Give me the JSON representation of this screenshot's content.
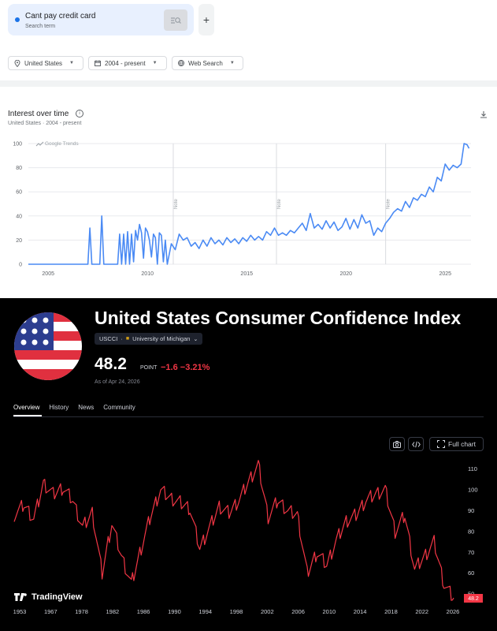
{
  "search": {
    "term": "Cant pay credit card",
    "sublabel": "Search term"
  },
  "filters": [
    {
      "label": "United States",
      "icon": "location-pin-icon"
    },
    {
      "label": "2004 - present",
      "icon": "calendar-icon"
    },
    {
      "label": "Web Search",
      "icon": "globe-icon"
    }
  ],
  "interest": {
    "title": "Interest over time",
    "subtitle": "United States · 2004 - present",
    "watermark": "Google Trends",
    "note_labels": [
      "Note",
      "Note",
      "Note"
    ]
  },
  "trends_chart_data": {
    "type": "line",
    "title": "Interest over time",
    "y_ticks": [
      0,
      20,
      40,
      60,
      80,
      100
    ],
    "x_ticks": [
      2005,
      2010,
      2015,
      2020,
      2025
    ],
    "ylim": [
      0,
      100
    ],
    "xlim": [
      2004,
      2026.3
    ],
    "note_years": [
      2011.3,
      2016.5,
      2022.0
    ],
    "color": "#4a8af4",
    "points": [
      [
        2004,
        0
      ],
      [
        2007,
        0
      ],
      [
        2007.1,
        30
      ],
      [
        2007.2,
        0
      ],
      [
        2007.6,
        0
      ],
      [
        2007.7,
        40
      ],
      [
        2007.8,
        0
      ],
      [
        2008.5,
        0
      ],
      [
        2008.6,
        25
      ],
      [
        2008.7,
        0
      ],
      [
        2008.8,
        25
      ],
      [
        2008.9,
        0
      ],
      [
        2009.0,
        27
      ],
      [
        2009.1,
        0
      ],
      [
        2009.2,
        25
      ],
      [
        2009.3,
        2
      ],
      [
        2009.4,
        28
      ],
      [
        2009.5,
        20
      ],
      [
        2009.6,
        33
      ],
      [
        2009.7,
        26
      ],
      [
        2009.8,
        5
      ],
      [
        2009.9,
        30
      ],
      [
        2010.0,
        27
      ],
      [
        2010.1,
        20
      ],
      [
        2010.2,
        6
      ],
      [
        2010.3,
        25
      ],
      [
        2010.4,
        22
      ],
      [
        2010.5,
        0
      ],
      [
        2010.6,
        26
      ],
      [
        2010.7,
        24
      ],
      [
        2010.8,
        2
      ],
      [
        2010.9,
        20
      ],
      [
        2011.0,
        0
      ],
      [
        2011.2,
        17
      ],
      [
        2011.4,
        12
      ],
      [
        2011.6,
        25
      ],
      [
        2011.8,
        20
      ],
      [
        2012.0,
        22
      ],
      [
        2012.2,
        15
      ],
      [
        2012.4,
        18
      ],
      [
        2012.6,
        13
      ],
      [
        2012.8,
        20
      ],
      [
        2013.0,
        15
      ],
      [
        2013.2,
        22
      ],
      [
        2013.4,
        17
      ],
      [
        2013.6,
        20
      ],
      [
        2013.8,
        16
      ],
      [
        2014.0,
        22
      ],
      [
        2014.2,
        18
      ],
      [
        2014.4,
        21
      ],
      [
        2014.6,
        17
      ],
      [
        2014.8,
        22
      ],
      [
        2015.0,
        19
      ],
      [
        2015.2,
        24
      ],
      [
        2015.4,
        20
      ],
      [
        2015.6,
        23
      ],
      [
        2015.8,
        20
      ],
      [
        2016.0,
        27
      ],
      [
        2016.2,
        24
      ],
      [
        2016.4,
        30
      ],
      [
        2016.6,
        24
      ],
      [
        2016.8,
        26
      ],
      [
        2017.0,
        24
      ],
      [
        2017.2,
        28
      ],
      [
        2017.4,
        26
      ],
      [
        2017.6,
        30
      ],
      [
        2017.8,
        34
      ],
      [
        2018.0,
        28
      ],
      [
        2018.2,
        42
      ],
      [
        2018.4,
        30
      ],
      [
        2018.6,
        33
      ],
      [
        2018.8,
        29
      ],
      [
        2019.0,
        36
      ],
      [
        2019.2,
        30
      ],
      [
        2019.4,
        35
      ],
      [
        2019.6,
        28
      ],
      [
        2019.8,
        31
      ],
      [
        2020.0,
        38
      ],
      [
        2020.2,
        29
      ],
      [
        2020.4,
        37
      ],
      [
        2020.6,
        30
      ],
      [
        2020.8,
        41
      ],
      [
        2021.0,
        34
      ],
      [
        2021.2,
        36
      ],
      [
        2021.4,
        24
      ],
      [
        2021.6,
        30
      ],
      [
        2021.8,
        27
      ],
      [
        2022.0,
        34
      ],
      [
        2022.2,
        38
      ],
      [
        2022.4,
        43
      ],
      [
        2022.6,
        46
      ],
      [
        2022.8,
        44
      ],
      [
        2023.0,
        52
      ],
      [
        2023.2,
        47
      ],
      [
        2023.4,
        55
      ],
      [
        2023.6,
        53
      ],
      [
        2023.8,
        58
      ],
      [
        2024.0,
        56
      ],
      [
        2024.2,
        64
      ],
      [
        2024.4,
        60
      ],
      [
        2024.6,
        72
      ],
      [
        2024.8,
        69
      ],
      [
        2025.0,
        83
      ],
      [
        2025.2,
        78
      ],
      [
        2025.4,
        82
      ],
      [
        2025.6,
        80
      ],
      [
        2025.8,
        83
      ],
      [
        2025.95,
        100
      ],
      [
        2026.1,
        99
      ],
      [
        2026.2,
        96
      ]
    ]
  },
  "tv": {
    "title": "United States Consumer Confidence Index",
    "symbol": "USCCI",
    "source": "University of Michigan",
    "price": "48.2",
    "unit": "POINT",
    "change": "−1.6 −3.21%",
    "as_of": "As of Apr 24, 2026",
    "tabs": [
      "Overview",
      "History",
      "News",
      "Community"
    ],
    "full_chart_label": "Full chart",
    "logo_text": "TradingView",
    "last_label": "48.2",
    "accent_color": "#f23645"
  },
  "chart_data": {
    "type": "line",
    "series_name": "USCCI",
    "color": "#f23645",
    "y_ticks": [
      50,
      60,
      70,
      80,
      90,
      100,
      110
    ],
    "x_ticks": [
      "1953",
      "1967",
      "1978",
      "1982",
      "1986",
      "1990",
      "1994",
      "1998",
      "2002",
      "2006",
      "2010",
      "2014",
      "2018",
      "2022",
      "2026"
    ],
    "ylim": [
      48,
      113
    ],
    "x_categories": [
      "1953",
      "1955",
      "1958",
      "1960",
      "1962",
      "1964",
      "1967",
      "1970",
      "1972",
      "1975",
      "1978",
      "1979",
      "1980",
      "1981",
      "1982",
      "1984",
      "1986",
      "1988",
      "1989",
      "1990",
      "1991",
      "1993",
      "1994",
      "1996",
      "1998",
      "2000",
      "2001",
      "2002",
      "2004",
      "2006",
      "2008",
      "2009",
      "2011",
      "2012",
      "2013",
      "2014",
      "2016",
      "2018",
      "2019",
      "2020",
      "2021",
      "2022",
      "2023",
      "2024",
      "2025",
      "2026"
    ],
    "values": [
      88,
      93,
      86,
      103,
      98,
      101,
      95,
      82,
      89,
      60,
      84,
      68,
      55,
      72,
      88,
      100,
      96,
      94,
      91,
      72,
      82,
      92,
      89,
      95,
      104,
      112,
      87,
      95,
      90,
      88,
      60,
      70,
      64,
      76,
      85,
      88,
      95,
      98,
      100,
      80,
      88,
      62,
      68,
      75,
      55,
      48
    ]
  }
}
